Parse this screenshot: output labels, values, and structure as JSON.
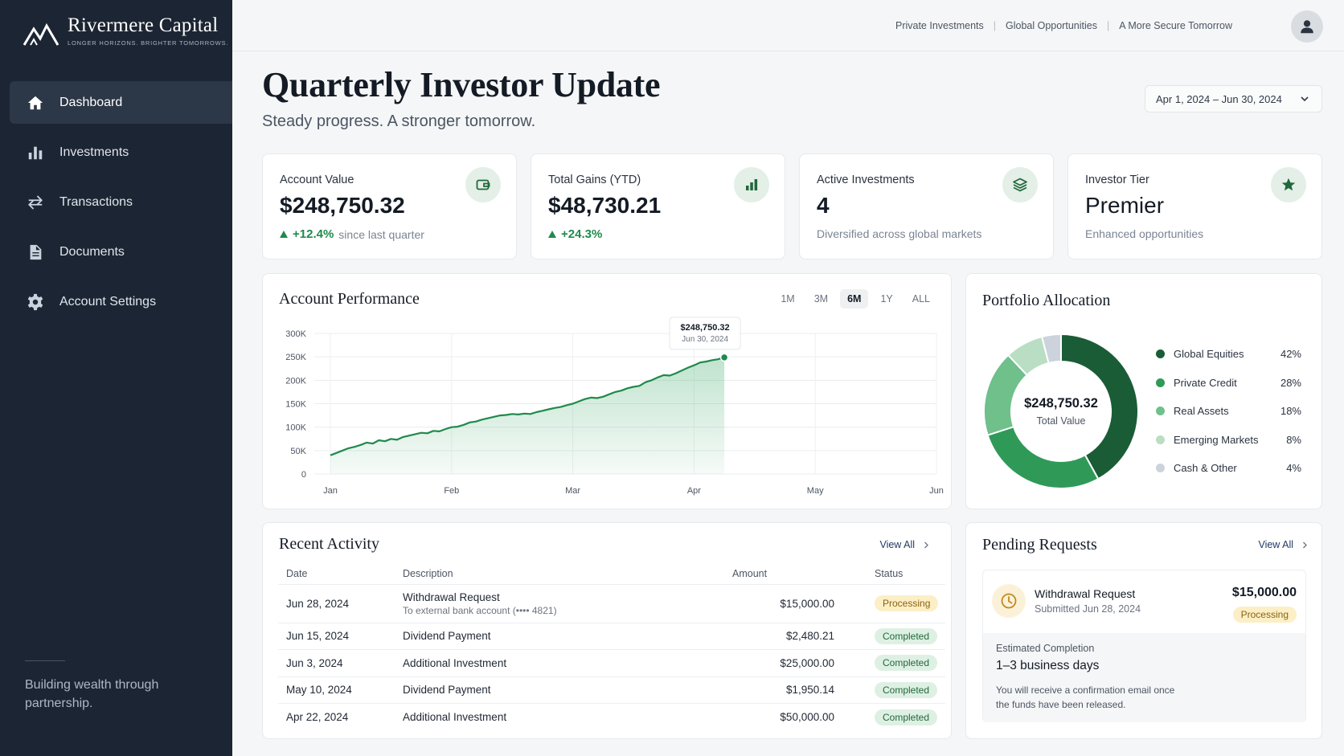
{
  "brand": {
    "name": "Rivermere Capital",
    "tagline": "LONGER HORIZONS. BRIGHTER TOMORROWS."
  },
  "sidebar": {
    "items": [
      {
        "label": "Dashboard",
        "icon": "home-icon",
        "active": true
      },
      {
        "label": "Investments",
        "icon": "bar-chart-icon",
        "active": false
      },
      {
        "label": "Transactions",
        "icon": "transfer-arrows-icon",
        "active": false
      },
      {
        "label": "Documents",
        "icon": "document-icon",
        "active": false
      },
      {
        "label": "Account Settings",
        "icon": "gear-icon",
        "active": false
      }
    ],
    "quote": "Building wealth through partnership."
  },
  "topbar": {
    "links": [
      "Private Investments",
      "Global Opportunities",
      "A More Secure Tomorrow"
    ],
    "avatar_icon": "user-icon"
  },
  "header": {
    "title": "Quarterly Investor Update",
    "subtitle": "Steady progress. A stronger tomorrow.",
    "date_range": "Apr 1, 2024 – Jun 30, 2024"
  },
  "kpis": [
    {
      "label": "Account Value",
      "value": "$248,750.32",
      "change": "+12.4%",
      "note": "since last quarter",
      "icon": "wallet-icon"
    },
    {
      "label": "Total Gains (YTD)",
      "value": "$48,730.21",
      "change": "+24.3%",
      "note": "",
      "icon": "bar-chart-icon"
    },
    {
      "label": "Active Investments",
      "value": "4",
      "change": "",
      "note": "Diversified across global markets",
      "icon": "layers-icon"
    },
    {
      "label": "Investor Tier",
      "value": "Premier",
      "change": "",
      "note": "Enhanced opportunities",
      "icon": "star-icon"
    }
  ],
  "performance": {
    "title": "Account Performance",
    "ranges": [
      "1M",
      "3M",
      "6M",
      "1Y",
      "ALL"
    ],
    "active_range": "6M",
    "tooltip": {
      "value": "$248,750.32",
      "date": "Jun 30, 2024"
    }
  },
  "allocation": {
    "title": "Portfolio Allocation",
    "center_value": "$248,750.32",
    "center_label": "Total Value"
  },
  "activity": {
    "title": "Recent Activity",
    "view_all": "View All",
    "columns": [
      "Date",
      "Description",
      "Amount",
      "Status"
    ],
    "rows": [
      {
        "date": "Jun 28, 2024",
        "description": "Withdrawal Request",
        "sub": "To external bank account (•••• 4821)",
        "amount": "$15,000.00",
        "status": "Processing"
      },
      {
        "date": "Jun 15, 2024",
        "description": "Dividend Payment",
        "sub": "",
        "amount": "$2,480.21",
        "status": "Completed"
      },
      {
        "date": "Jun 3, 2024",
        "description": "Additional Investment",
        "sub": "",
        "amount": "$25,000.00",
        "status": "Completed"
      },
      {
        "date": "May 10, 2024",
        "description": "Dividend Payment",
        "sub": "",
        "amount": "$1,950.14",
        "status": "Completed"
      },
      {
        "date": "Apr 22, 2024",
        "description": "Additional Investment",
        "sub": "",
        "amount": "$50,000.00",
        "status": "Completed"
      }
    ]
  },
  "pending": {
    "title": "Pending Requests",
    "view_all": "View All",
    "request": {
      "title": "Withdrawal Request",
      "submitted": "Submitted Jun 28, 2024",
      "amount": "$15,000.00",
      "status": "Processing",
      "icon": "clock-icon",
      "estimate_label": "Estimated Completion",
      "estimate_value": "1–3 business days",
      "note": "You will receive a confirmation email once the funds have been released."
    }
  },
  "colors": {
    "sidebar_bg": "#1c2533",
    "accent_green": "#1f8a4c",
    "processing": "#fcefc6",
    "completed": "#def0e3"
  },
  "chart_data": [
    {
      "type": "area",
      "title": "Account Performance",
      "x": [
        "Jan",
        "Feb",
        "Mar",
        "Apr",
        "May",
        "Jun"
      ],
      "y_ticks": [
        "0",
        "50K",
        "100K",
        "150K",
        "200K",
        "250K",
        "300K"
      ],
      "ylim": [
        0,
        300000
      ],
      "grid": true,
      "series": [
        {
          "points": [
            [
              0.0,
              40000
            ],
            [
              0.05,
              45000
            ],
            [
              0.1,
              50000
            ],
            [
              0.15,
              55000
            ],
            [
              0.2,
              58000
            ],
            [
              0.25,
              62000
            ],
            [
              0.3,
              67000
            ],
            [
              0.35,
              65000
            ],
            [
              0.4,
              72000
            ],
            [
              0.45,
              70000
            ],
            [
              0.5,
              75000
            ],
            [
              0.55,
              73000
            ],
            [
              0.6,
              79000
            ],
            [
              0.65,
              82000
            ],
            [
              0.7,
              85000
            ],
            [
              0.75,
              88000
            ],
            [
              0.8,
              87000
            ],
            [
              0.85,
              92000
            ],
            [
              0.9,
              91000
            ],
            [
              0.95,
              96000
            ],
            [
              1.0,
              100000
            ],
            [
              1.05,
              101000
            ],
            [
              1.1,
              105000
            ],
            [
              1.15,
              110000
            ],
            [
              1.2,
              112000
            ],
            [
              1.25,
              116000
            ],
            [
              1.3,
              119000
            ],
            [
              1.35,
              122000
            ],
            [
              1.4,
              125000
            ],
            [
              1.45,
              126000
            ],
            [
              1.5,
              128000
            ],
            [
              1.55,
              127000
            ],
            [
              1.6,
              129000
            ],
            [
              1.65,
              128000
            ],
            [
              1.7,
              132000
            ],
            [
              1.75,
              135000
            ],
            [
              1.8,
              138000
            ],
            [
              1.85,
              141000
            ],
            [
              1.9,
              143000
            ],
            [
              1.95,
              147000
            ],
            [
              2.0,
              150000
            ],
            [
              2.05,
              155000
            ],
            [
              2.1,
              160000
            ],
            [
              2.15,
              163000
            ],
            [
              2.2,
              162000
            ],
            [
              2.25,
              165000
            ],
            [
              2.3,
              170000
            ],
            [
              2.35,
              175000
            ],
            [
              2.4,
              178000
            ],
            [
              2.45,
              183000
            ],
            [
              2.5,
              186000
            ],
            [
              2.55,
              188000
            ],
            [
              2.6,
              196000
            ],
            [
              2.65,
              200000
            ],
            [
              2.7,
              206000
            ],
            [
              2.75,
              211000
            ],
            [
              2.8,
              210000
            ],
            [
              2.85,
              215000
            ],
            [
              2.9,
              221000
            ],
            [
              2.95,
              227000
            ],
            [
              3.0,
              232000
            ],
            [
              3.05,
              238000
            ],
            [
              3.1,
              240000
            ],
            [
              3.15,
              243000
            ],
            [
              3.2,
              245000
            ],
            [
              3.25,
              248750
            ]
          ],
          "last_value": 248750.32
        }
      ]
    },
    {
      "type": "pie",
      "title": "Portfolio Allocation",
      "categories": [
        "Global Equities",
        "Private Credit",
        "Real Assets",
        "Emerging Markets",
        "Cash & Other"
      ],
      "values": [
        42,
        28,
        18,
        8,
        4
      ],
      "value_labels": [
        "42%",
        "28%",
        "18%",
        "8%",
        "4%"
      ],
      "colors": [
        "#1a5c36",
        "#2f9a58",
        "#6fc08b",
        "#b9dec4",
        "#cdd3dc"
      ],
      "legend": "right"
    }
  ]
}
